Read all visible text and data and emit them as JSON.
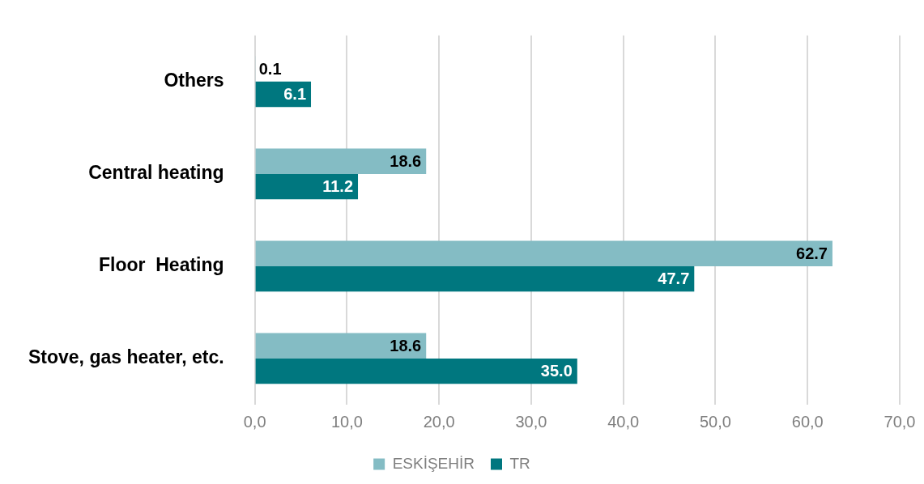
{
  "chart_data": {
    "type": "bar",
    "orientation": "horizontal",
    "categories": [
      "Others",
      "Central heating",
      "Floor  Heating",
      "Stove, gas heater, etc."
    ],
    "series": [
      {
        "name": "ESKİŞEHİR",
        "color": "#84bcc4",
        "values": [
          0.1,
          18.6,
          62.7,
          18.6
        ],
        "value_labels": [
          "0.1",
          "18.6",
          "62.7",
          "18.6"
        ]
      },
      {
        "name": "TR",
        "color": "#00777f",
        "values": [
          6.1,
          11.2,
          47.7,
          35.0
        ],
        "value_labels": [
          "6.1",
          "11.2",
          "47.7",
          "35.0"
        ]
      }
    ],
    "xlim": [
      0,
      70
    ],
    "xticks": [
      {
        "value": 0,
        "label": "0,0"
      },
      {
        "value": 10,
        "label": "10,0"
      },
      {
        "value": 20,
        "label": "20,0"
      },
      {
        "value": 30,
        "label": "30,0"
      },
      {
        "value": 40,
        "label": "40,0"
      },
      {
        "value": 50,
        "label": "50,0"
      },
      {
        "value": 60,
        "label": "60,0"
      },
      {
        "value": 70,
        "label": "70,0"
      }
    ],
    "grid": "x",
    "legend": "bottom"
  }
}
